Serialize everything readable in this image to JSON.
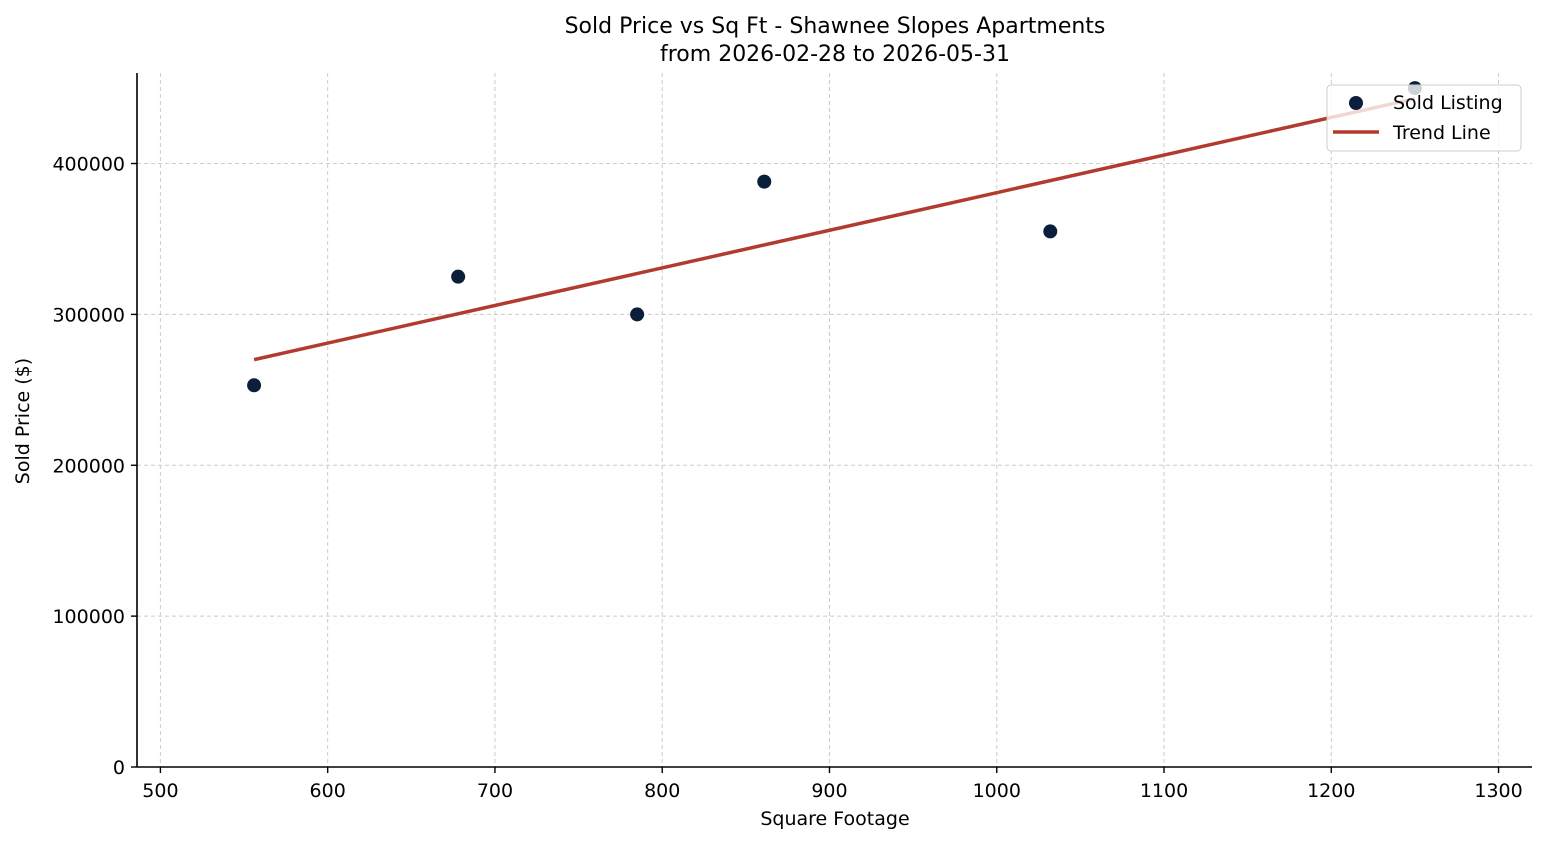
{
  "chart_data": {
    "type": "scatter",
    "title": "Sold Price vs Sq Ft - Shawnee Slopes Apartments",
    "subtitle": "from 2026-02-28 to 2026-05-31",
    "xlabel": "Square Footage",
    "ylabel": "Sold Price ($)",
    "xlim": [
      486,
      1320
    ],
    "ylim": [
      0,
      460000
    ],
    "xticks": [
      500,
      600,
      700,
      800,
      900,
      1000,
      1100,
      1200,
      1300
    ],
    "yticks": [
      0,
      100000,
      200000,
      300000,
      400000
    ],
    "grid": true,
    "legend_position": "top-right",
    "series": [
      {
        "name": "Sold Listing",
        "kind": "scatter",
        "color": "#0b1f3a",
        "x": [
          556,
          678,
          785,
          861,
          1032,
          1250
        ],
        "y": [
          253000,
          325000,
          300000,
          388000,
          355000,
          450000
        ]
      },
      {
        "name": "Trend Line",
        "kind": "line",
        "color": "#b23a2e",
        "x": [
          556,
          1250
        ],
        "y": [
          270000,
          443000
        ]
      }
    ]
  }
}
